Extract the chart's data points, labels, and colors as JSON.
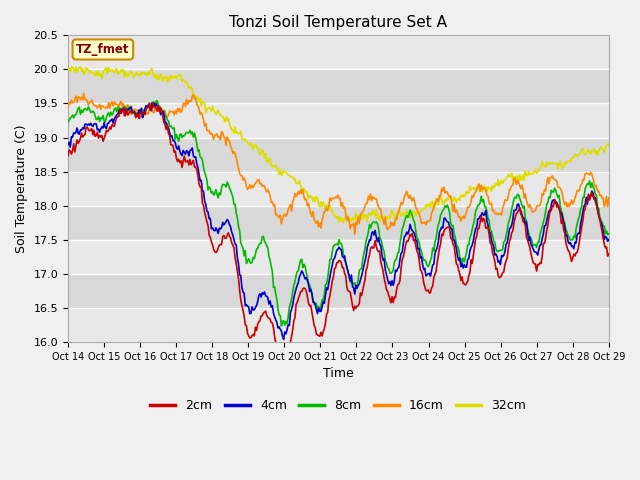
{
  "title": "Tonzi Soil Temperature Set A",
  "ylabel": "Soil Temperature (C)",
  "xlabel": "Time",
  "annotation": "TZ_fmet",
  "ylim": [
    16.0,
    20.5
  ],
  "yticks": [
    16.0,
    16.5,
    17.0,
    17.5,
    18.0,
    18.5,
    19.0,
    19.5,
    20.0,
    20.5
  ],
  "xticklabels": [
    "Oct 14",
    "Oct 15",
    "Oct 16",
    "Oct 17",
    "Oct 18",
    "Oct 19",
    "Oct 20",
    "Oct 21",
    "Oct 22",
    "Oct 23",
    "Oct 24",
    "Oct 25",
    "Oct 26",
    "Oct 27",
    "Oct 28",
    "Oct 29"
  ],
  "colors": {
    "2cm": "#cc0000",
    "4cm": "#0000cc",
    "8cm": "#00bb00",
    "16cm": "#ff8800",
    "32cm": "#dddd00"
  },
  "fig_facecolor": "#f0f0f0",
  "ax_facecolor": "#e8e8e8",
  "grid_color": "#ffffff",
  "alt_band_color": "#d8d8d8",
  "title_fontsize": 11,
  "label_fontsize": 9,
  "tick_fontsize": 7,
  "n_points": 480
}
